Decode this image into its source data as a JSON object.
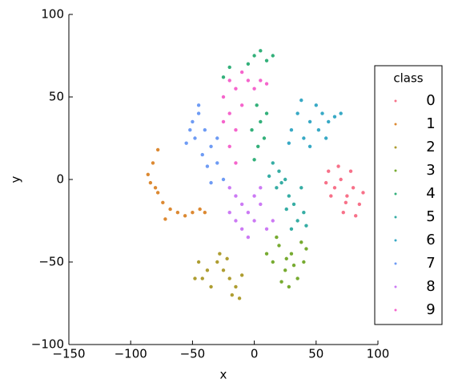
{
  "chart_data": {
    "type": "scatter",
    "xlabel": "x",
    "ylabel": "y",
    "xlim": [
      -150,
      100
    ],
    "ylim": [
      -100,
      100
    ],
    "xticks": [
      {
        "value": -150,
        "label": "−150"
      },
      {
        "value": -100,
        "label": "−100"
      },
      {
        "value": -50,
        "label": "−50"
      },
      0,
      50,
      100
    ],
    "yticks": [
      {
        "value": -100,
        "label": "−100"
      },
      {
        "value": -50,
        "label": "−50"
      },
      0,
      50,
      100
    ],
    "grid": false,
    "legend": "right",
    "legend_title": "class",
    "series": [
      {
        "name": "0",
        "color": "#f77189",
        "x": [
          60,
          65,
          70,
          75,
          80,
          85,
          72,
          62,
          78,
          68,
          82,
          58,
          74,
          88
        ],
        "y": [
          5,
          -5,
          0,
          -10,
          -5,
          -15,
          -20,
          -10,
          5,
          8,
          -22,
          -2,
          -14,
          -8
        ]
      },
      {
        "name": "1",
        "color": "#dc8932",
        "x": [
          -78,
          -82,
          -86,
          -84,
          -78,
          -74,
          -68,
          -62,
          -56,
          -50,
          -44,
          -40,
          -72,
          -80
        ],
        "y": [
          18,
          10,
          3,
          -2,
          -8,
          -14,
          -18,
          -20,
          -22,
          -20,
          -18,
          -20,
          -24,
          -5
        ]
      },
      {
        "name": "2",
        "color": "#ae9d31",
        "x": [
          -45,
          -42,
          -38,
          -48,
          -35,
          -28,
          -25,
          -20,
          -15,
          -10,
          -18,
          -12,
          -30,
          -22
        ],
        "y": [
          -50,
          -60,
          -55,
          -60,
          -65,
          -45,
          -55,
          -60,
          -65,
          -58,
          -70,
          -72,
          -50,
          -48
        ]
      },
      {
        "name": "3",
        "color": "#77ab31",
        "x": [
          10,
          15,
          20,
          25,
          30,
          35,
          40,
          28,
          22,
          38,
          18,
          32,
          42,
          26
        ],
        "y": [
          -45,
          -50,
          -40,
          -55,
          -45,
          -60,
          -50,
          -65,
          -62,
          -38,
          -35,
          -52,
          -42,
          -48
        ]
      },
      {
        "name": "4",
        "color": "#33b07a",
        "x": [
          0,
          5,
          10,
          15,
          -5,
          -20,
          -25,
          2,
          5,
          -2,
          3,
          8,
          0,
          10
        ],
        "y": [
          75,
          78,
          72,
          75,
          70,
          68,
          62,
          45,
          35,
          30,
          20,
          25,
          12,
          40
        ]
      },
      {
        "name": "5",
        "color": "#36ada4",
        "x": [
          15,
          20,
          18,
          25,
          28,
          32,
          35,
          40,
          30,
          22,
          38,
          12,
          42,
          26
        ],
        "y": [
          10,
          5,
          -5,
          0,
          -10,
          -15,
          -25,
          -20,
          -30,
          -2,
          -5,
          2,
          -28,
          -18
        ]
      },
      {
        "name": "6",
        "color": "#38a9c5",
        "x": [
          30,
          35,
          40,
          45,
          50,
          55,
          60,
          65,
          45,
          38,
          52,
          58,
          70,
          28
        ],
        "y": [
          30,
          40,
          25,
          35,
          45,
          40,
          35,
          38,
          20,
          48,
          30,
          25,
          40,
          22
        ]
      },
      {
        "name": "7",
        "color": "#6e9bf4",
        "x": [
          -50,
          -45,
          -40,
          -35,
          -48,
          -55,
          -42,
          -38,
          -30,
          -25,
          -35,
          -45,
          -30,
          -52
        ],
        "y": [
          35,
          40,
          30,
          20,
          25,
          22,
          15,
          8,
          10,
          0,
          -2,
          45,
          25,
          30
        ]
      },
      {
        "name": "8",
        "color": "#cc7af4",
        "x": [
          -20,
          -15,
          -10,
          -5,
          0,
          5,
          10,
          -15,
          -5,
          -20,
          5,
          15,
          -10,
          0
        ],
        "y": [
          -5,
          -10,
          -15,
          -20,
          -25,
          -15,
          -30,
          -25,
          -35,
          -20,
          -5,
          -25,
          -30,
          -10
        ]
      },
      {
        "name": "9",
        "color": "#f565cc",
        "x": [
          -20,
          -15,
          -10,
          -5,
          0,
          5,
          -25,
          -20,
          -15,
          -20,
          -15,
          -10,
          -25,
          10
        ],
        "y": [
          60,
          55,
          65,
          60,
          55,
          60,
          50,
          40,
          30,
          20,
          10,
          45,
          35,
          58
        ]
      }
    ]
  }
}
